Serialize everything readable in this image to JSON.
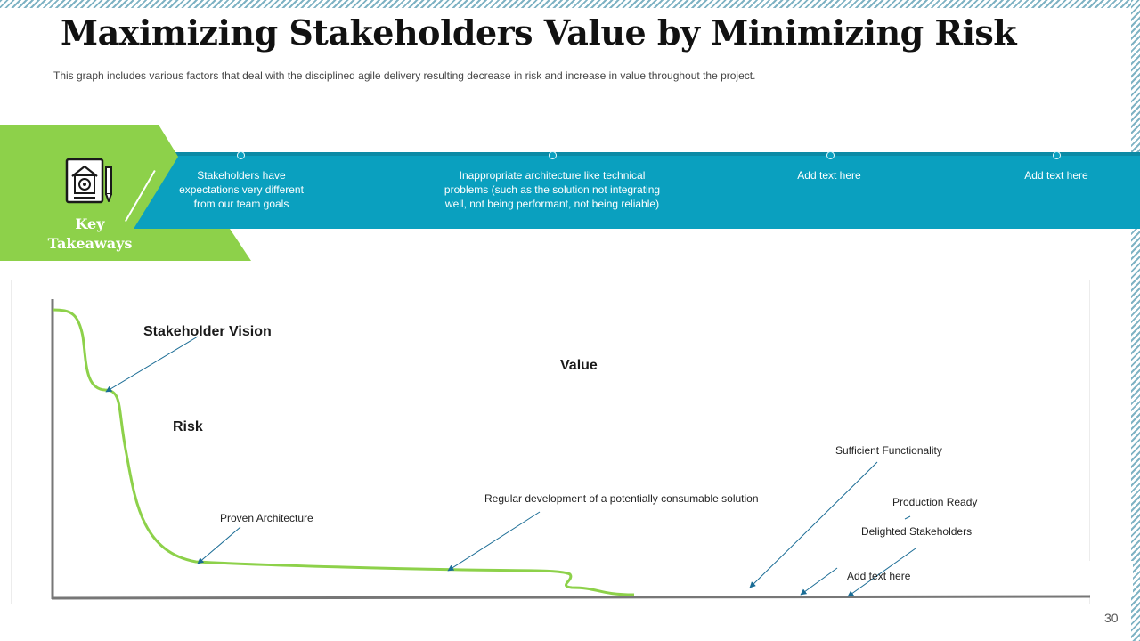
{
  "page": {
    "title": "Maximizing Stakeholders Value by Minimizing Risk",
    "subtitle": "This graph includes various factors that deal with the disciplined agile delivery resulting decrease in risk and increase in value throughout the project.",
    "page_number": "30"
  },
  "takeaways": {
    "label": "Key Takeaways",
    "icon": "house-document-icon",
    "items": [
      "Stakeholders have expectations very different from our team goals",
      "Inappropriate  architecture like technical problems (such as the solution not integrating well, not being performant, not being reliable)",
      "Add text here",
      "Add text here"
    ]
  },
  "colors": {
    "green": "#8dd14a",
    "teal": "#0aa0bf",
    "curve": "#8dd14a",
    "arrow": "#1a6c95",
    "axis": "#777777"
  },
  "diagram": {
    "stakeholder_vision": "Stakeholder Vision",
    "value": "Value",
    "risk": "Risk",
    "proven_architecture": "Proven  Architecture",
    "regular_development": "Regular  development  of a potentially consumable solution",
    "sufficient_functionality": "Sufficient Functionality",
    "production_ready": "Production Ready",
    "delighted_stakeholders": "Delighted  Stakeholders",
    "add_text": "Add text here"
  }
}
